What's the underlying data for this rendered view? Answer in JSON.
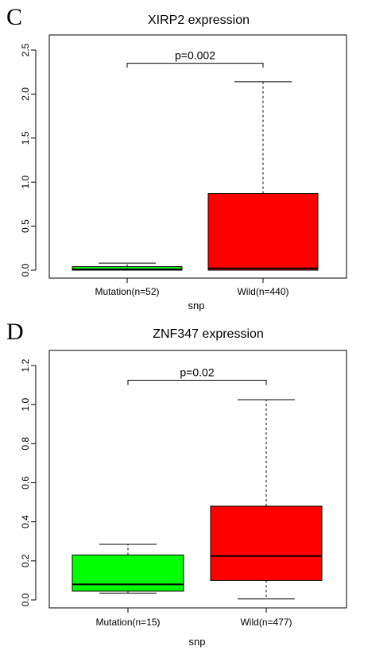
{
  "chart_data": [
    {
      "type": "boxplot",
      "panel_label": "C",
      "title": "XIRP2 expression",
      "xlabel": "snp",
      "ylabel": "",
      "ylim": [
        0,
        2.5
      ],
      "yticks": [
        0.0,
        0.5,
        1.0,
        1.5,
        2.0,
        2.5
      ],
      "ytick_labels": [
        "0.0",
        "0.5",
        "1.0",
        "1.5",
        "2.0",
        "2.5"
      ],
      "categories": [
        "Mutation(n=52)",
        "Wild(n=440)"
      ],
      "boxes": [
        {
          "category": "Mutation(n=52)",
          "color": "#00ff00",
          "whisker_low": 0.0,
          "q1": 0.0,
          "median": 0.01,
          "q3": 0.04,
          "whisker_high": 0.08
        },
        {
          "category": "Wild(n=440)",
          "color": "#ff0000",
          "whisker_low": 0.0,
          "q1": 0.0,
          "median": 0.02,
          "q3": 0.87,
          "whisker_high": 2.14
        }
      ],
      "annotation": {
        "text": "p=0.002",
        "y": 2.35,
        "drop_to": 2.3
      }
    },
    {
      "type": "boxplot",
      "panel_label": "D",
      "title": "ZNF347 expression",
      "xlabel": "snp",
      "ylabel": "",
      "ylim": [
        0,
        1.2
      ],
      "yticks": [
        0.0,
        0.2,
        0.4,
        0.6,
        0.8,
        1.0,
        1.2
      ],
      "ytick_labels": [
        "0.0",
        "0.2",
        "0.4",
        "0.6",
        "0.8",
        "1.0",
        "1.2"
      ],
      "categories": [
        "Mutation(n=15)",
        "Wild(n=477)"
      ],
      "boxes": [
        {
          "category": "Mutation(n=15)",
          "color": "#00ff00",
          "whisker_low": 0.035,
          "q1": 0.045,
          "median": 0.08,
          "q3": 0.23,
          "whisker_high": 0.285
        },
        {
          "category": "Wild(n=477)",
          "color": "#ff0000",
          "whisker_low": 0.005,
          "q1": 0.1,
          "median": 0.225,
          "q3": 0.48,
          "whisker_high": 1.025
        }
      ],
      "annotation": {
        "text": "p=0.02",
        "y": 1.125,
        "drop_to": 1.1
      }
    }
  ]
}
